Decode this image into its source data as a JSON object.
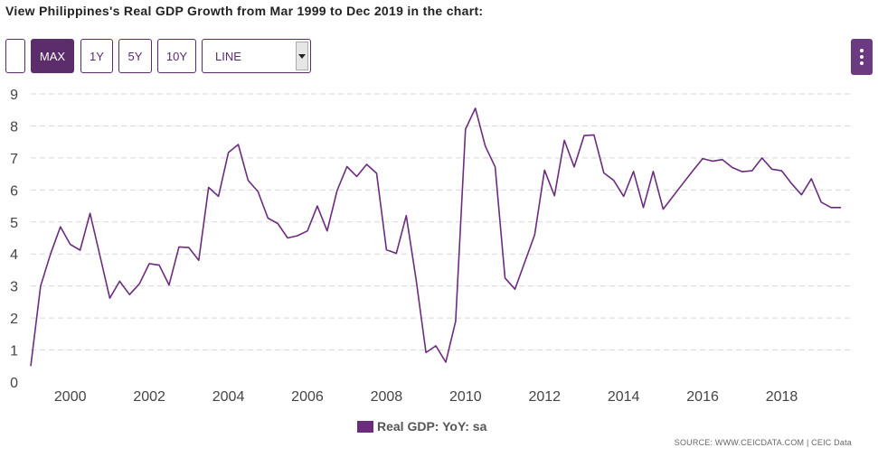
{
  "title": "View Philippines's Real GDP Growth from Mar 1999 to Dec 2019 in the chart:",
  "toolbar": {
    "max_label": "MAX",
    "y1_label": "1Y",
    "y5_label": "5Y",
    "y10_label": "10Y",
    "chart_type_value": "LINE"
  },
  "legend_label": "Real GDP: YoY: sa",
  "source": "SOURCE: WWW.CEICDATA.COM | CEIC Data",
  "colors": {
    "line": "#6c2c7e",
    "accent": "#5b2d6b",
    "grid": "#d8d8d8"
  },
  "chart_data": {
    "type": "line",
    "title": "",
    "xlabel": "",
    "ylabel": "",
    "ylim": [
      0,
      9
    ],
    "xlim": [
      1999.0,
      2019.75
    ],
    "yticks": [
      "0",
      "1",
      "2",
      "3",
      "4",
      "5",
      "6",
      "7",
      "8",
      "9"
    ],
    "xticks": [
      "2000",
      "2002",
      "2004",
      "2006",
      "2008",
      "2010",
      "2012",
      "2014",
      "2016",
      "2018"
    ],
    "grid": true,
    "legend": "bottom-center",
    "series": [
      {
        "name": "Real GDP: YoY: sa",
        "x": [
          1999.0,
          1999.25,
          1999.5,
          1999.75,
          2000.0,
          2000.25,
          2000.5,
          2000.75,
          2001.0,
          2001.25,
          2001.5,
          2001.75,
          2002.0,
          2002.25,
          2002.5,
          2002.75,
          2003.0,
          2003.25,
          2003.5,
          2003.75,
          2004.0,
          2004.25,
          2004.5,
          2004.75,
          2005.0,
          2005.25,
          2005.5,
          2005.75,
          2006.0,
          2006.25,
          2006.5,
          2006.75,
          2007.0,
          2007.25,
          2007.5,
          2007.75,
          2008.0,
          2008.25,
          2008.5,
          2008.75,
          2009.0,
          2009.25,
          2009.5,
          2009.75,
          2010.0,
          2010.25,
          2010.5,
          2010.75,
          2011.0,
          2011.25,
          2011.5,
          2011.75,
          2012.0,
          2012.25,
          2012.5,
          2012.75,
          2013.0,
          2013.25,
          2013.5,
          2013.75,
          2014.0,
          2014.25,
          2014.5,
          2014.75,
          2015.0,
          2015.25,
          2015.5,
          2015.75,
          2016.0,
          2016.25,
          2016.5,
          2016.75,
          2017.0,
          2017.25,
          2017.5,
          2017.75,
          2018.0,
          2018.25,
          2018.5,
          2018.75,
          2019.0,
          2019.25,
          2019.5
        ],
        "values": [
          0.5,
          3.0,
          4.0,
          4.85,
          4.3,
          4.12,
          5.27,
          3.95,
          2.62,
          3.15,
          2.73,
          3.07,
          3.7,
          3.65,
          3.03,
          4.22,
          4.2,
          3.8,
          6.08,
          5.8,
          7.17,
          7.42,
          6.3,
          5.95,
          5.12,
          4.95,
          4.5,
          4.57,
          4.72,
          5.5,
          4.72,
          5.98,
          6.73,
          6.42,
          6.8,
          6.52,
          4.13,
          4.02,
          5.2,
          3.2,
          0.92,
          1.13,
          0.62,
          1.9,
          7.9,
          8.55,
          7.37,
          6.72,
          3.25,
          2.9,
          3.75,
          4.6,
          6.62,
          5.82,
          7.55,
          6.72,
          7.7,
          7.72,
          6.53,
          6.3,
          5.8,
          6.58,
          5.45,
          6.58,
          5.4,
          5.8,
          6.2,
          6.6,
          6.98,
          6.9,
          6.95,
          6.7,
          6.57,
          6.6,
          7.0,
          6.65,
          6.6,
          6.2,
          5.85,
          6.35,
          5.62,
          5.45,
          5.45
        ]
      }
    ]
  }
}
